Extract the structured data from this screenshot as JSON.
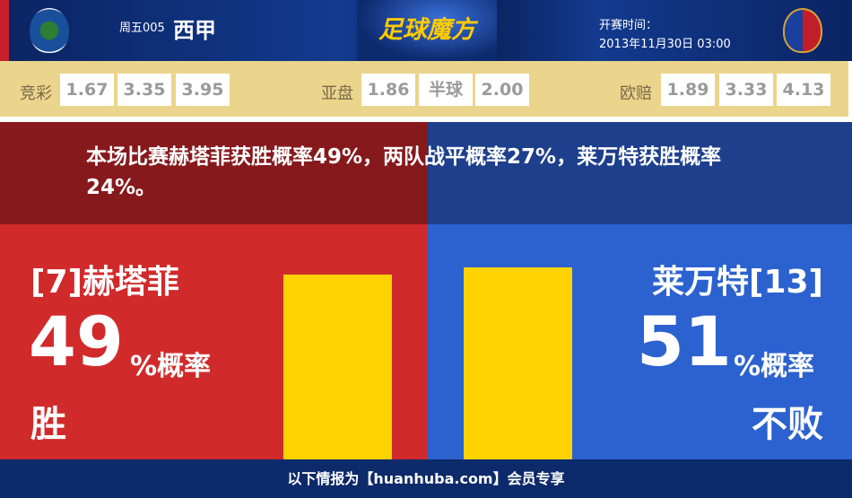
{
  "header": {
    "match_no": "周五005",
    "league": "西甲",
    "brand": "足球魔方",
    "kickoff_label": "开赛时间：",
    "kickoff_time": "2013年11月30日 03:00"
  },
  "odds": {
    "jingcai": {
      "label": "竞彩",
      "values": [
        "1.67",
        "3.35",
        "3.95"
      ]
    },
    "yapan": {
      "label": "亚盘",
      "values": [
        "1.86",
        "半球",
        "2.00"
      ]
    },
    "oupei": {
      "label": "欧赔",
      "values": [
        "1.89",
        "3.33",
        "4.13"
      ]
    }
  },
  "summary": "本场比赛赫塔菲获胜概率49%，两队战平概率27%，莱万特获胜概率24%。",
  "home": {
    "team": "[7]赫塔菲",
    "pct": "49",
    "pct_suffix": "%概率",
    "outcome": "胜",
    "color": "#d12a2b",
    "bar_value": 49
  },
  "away": {
    "team": "莱万特[13]",
    "pct": "51",
    "pct_suffix": "%概率",
    "outcome": "不败",
    "color": "#2c62cf",
    "bar_value": 51
  },
  "footer": "以下情报为【huanhuba.com】会员专享"
}
